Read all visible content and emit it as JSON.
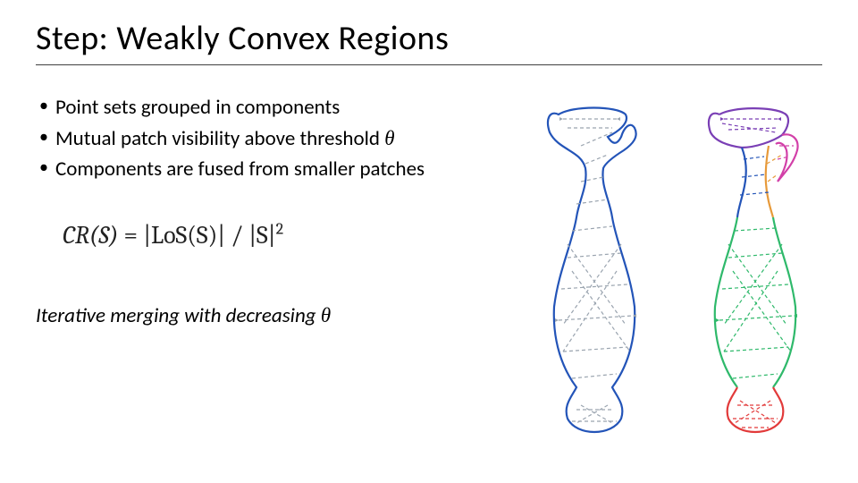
{
  "title": "Step: Weakly Convex Regions",
  "bullets": [
    "Point sets grouped in components",
    "Mutual patch visibility above threshold θ",
    "Components are fused from smaller patches"
  ],
  "equation": {
    "lhs": "CR(S)",
    "eq": " = ",
    "mid1": "|LoS(S)|",
    "div": "  /  ",
    "mid2": "|S|",
    "sup": "2"
  },
  "footnote": "Iterative merging with decreasing θ",
  "colors": {
    "title_text": "#000000",
    "title_underline": "#404040",
    "body_text": "#000000",
    "equation_text": "#222222",
    "background": "#ffffff",
    "vase_outline_left": "#2354b8",
    "vase_inner_lines": "#9aa4af",
    "component_purple": "#7a3fb5",
    "component_blue": "#2354b8",
    "component_orange": "#e79a3a",
    "component_magenta": "#d240a8",
    "component_green": "#2fb96b",
    "component_red": "#e23a3a"
  },
  "diagram": {
    "type": "infographic",
    "description": "Two vase-shaped outlines side by side with internal dashed visibility lines; left vase single blue outline with grey dashed inner edges; right vase colored segmented outline (purple top, blue+orange upper neck, magenta handle, green body, red base) with colored dashed inner edges.",
    "vase_left": {
      "outline_color": "#2354b8",
      "outline_width": 2.2,
      "inner_line_color": "#9aa4af",
      "inner_line_width": 1.2,
      "inner_dash": "4,3"
    },
    "vase_right": {
      "outline_width": 2.2,
      "inner_line_width": 1.2,
      "inner_dash": "4,3",
      "regions": [
        {
          "name": "top-lip",
          "color": "#7a3fb5"
        },
        {
          "name": "neck-left",
          "color": "#2354b8"
        },
        {
          "name": "neck-right",
          "color": "#e79a3a"
        },
        {
          "name": "handle",
          "color": "#d240a8"
        },
        {
          "name": "body",
          "color": "#2fb96b"
        },
        {
          "name": "base",
          "color": "#e23a3a"
        }
      ]
    }
  }
}
